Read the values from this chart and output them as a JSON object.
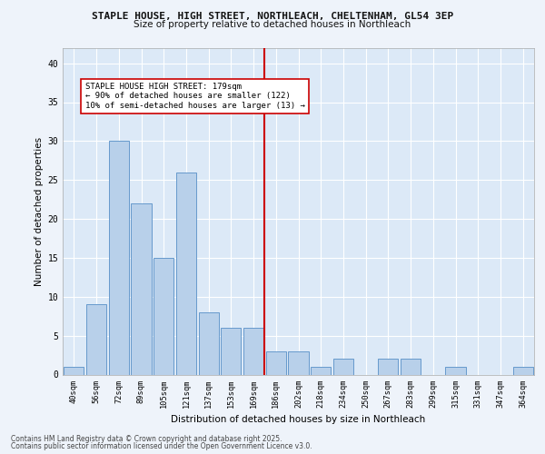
{
  "title1": "STAPLE HOUSE, HIGH STREET, NORTHLEACH, CHELTENHAM, GL54 3EP",
  "title2": "Size of property relative to detached houses in Northleach",
  "xlabel": "Distribution of detached houses by size in Northleach",
  "ylabel": "Number of detached properties",
  "bins": [
    "40sqm",
    "56sqm",
    "72sqm",
    "89sqm",
    "105sqm",
    "121sqm",
    "137sqm",
    "153sqm",
    "169sqm",
    "186sqm",
    "202sqm",
    "218sqm",
    "234sqm",
    "250sqm",
    "267sqm",
    "283sqm",
    "299sqm",
    "315sqm",
    "331sqm",
    "347sqm",
    "364sqm"
  ],
  "values": [
    1,
    9,
    30,
    22,
    15,
    26,
    8,
    6,
    6,
    3,
    3,
    1,
    2,
    0,
    2,
    2,
    0,
    1,
    0,
    0,
    1
  ],
  "bar_color": "#b8d0ea",
  "bar_edge_color": "#6699cc",
  "background_color": "#dce9f7",
  "grid_color": "#ffffff",
  "vline_x": 8.5,
  "vline_color": "#cc0000",
  "annotation_text": "STAPLE HOUSE HIGH STREET: 179sqm\n← 90% of detached houses are smaller (122)\n10% of semi-detached houses are larger (13) →",
  "annotation_box_color": "#ffffff",
  "annotation_box_edge": "#cc0000",
  "ylim": [
    0,
    42
  ],
  "yticks": [
    0,
    5,
    10,
    15,
    20,
    25,
    30,
    35,
    40
  ],
  "fig_bg": "#eef3fa",
  "footer1": "Contains HM Land Registry data © Crown copyright and database right 2025.",
  "footer2": "Contains public sector information licensed under the Open Government Licence v3.0."
}
